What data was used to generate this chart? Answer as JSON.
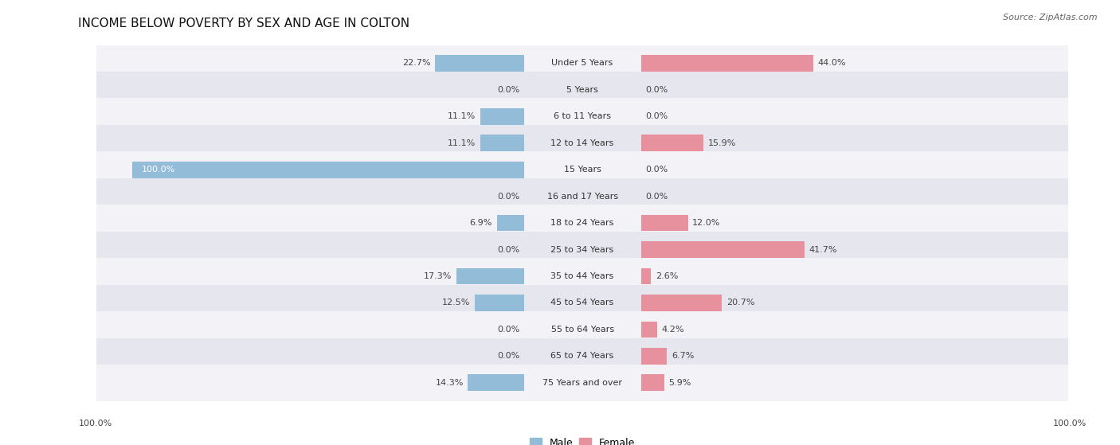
{
  "title": "INCOME BELOW POVERTY BY SEX AND AGE IN COLTON",
  "source": "Source: ZipAtlas.com",
  "categories": [
    "Under 5 Years",
    "5 Years",
    "6 to 11 Years",
    "12 to 14 Years",
    "15 Years",
    "16 and 17 Years",
    "18 to 24 Years",
    "25 to 34 Years",
    "35 to 44 Years",
    "45 to 54 Years",
    "55 to 64 Years",
    "65 to 74 Years",
    "75 Years and over"
  ],
  "male_values": [
    22.7,
    0.0,
    11.1,
    11.1,
    100.0,
    0.0,
    6.9,
    0.0,
    17.3,
    12.5,
    0.0,
    0.0,
    14.3
  ],
  "female_values": [
    44.0,
    0.0,
    0.0,
    15.9,
    0.0,
    0.0,
    12.0,
    41.7,
    2.6,
    20.7,
    4.2,
    6.7,
    5.9
  ],
  "male_color": "#92bcd8",
  "female_color": "#e8919e",
  "row_bg_light": "#f2f2f7",
  "row_bg_dark": "#e6e6ee",
  "title_fontsize": 11,
  "source_fontsize": 8,
  "label_fontsize": 8,
  "category_fontsize": 8,
  "legend_fontsize": 9,
  "max_value": 100.0,
  "axis_label": "100.0%"
}
